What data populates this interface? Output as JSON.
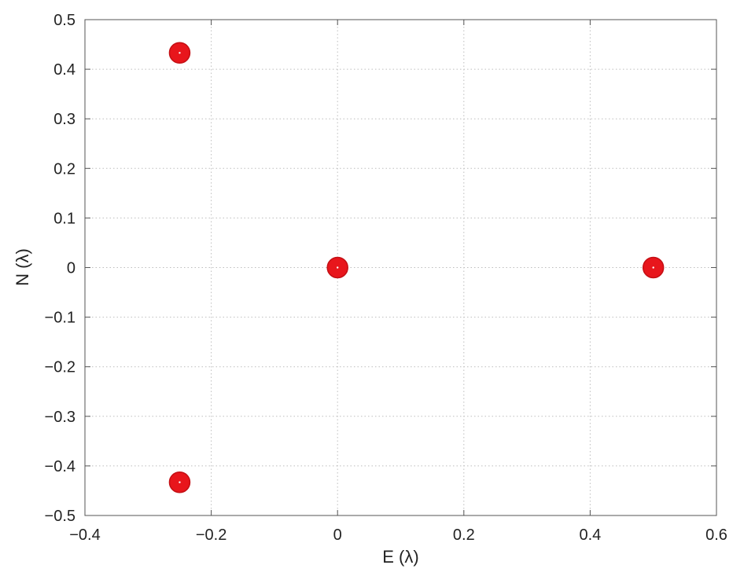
{
  "chart_data": {
    "type": "scatter",
    "xlabel": "E (λ)",
    "ylabel": "N (λ)",
    "xlim": [
      -0.4,
      0.6
    ],
    "ylim": [
      -0.5,
      0.5
    ],
    "x_ticks": [
      -0.4,
      -0.2,
      0,
      0.2,
      0.4,
      0.6
    ],
    "x_tick_labels": [
      "−0.4",
      "−0.2",
      "0",
      "0.2",
      "0.4",
      "0.6"
    ],
    "y_ticks": [
      0.5,
      0.4,
      0.3,
      0.2,
      0.1,
      0,
      -0.1,
      -0.2,
      -0.3,
      -0.4,
      -0.5
    ],
    "y_tick_labels": [
      "0.5",
      "0.4",
      "0.3",
      "0.2",
      "0.1",
      "0",
      "−0.1",
      "−0.2",
      "−0.3",
      "−0.4",
      "−0.5"
    ],
    "grid": true,
    "marker_color": "#e8161c",
    "points": [
      {
        "x": -0.25,
        "y": 0.433
      },
      {
        "x": 0,
        "y": 0
      },
      {
        "x": 0.5,
        "y": 0
      },
      {
        "x": -0.25,
        "y": -0.433
      }
    ]
  }
}
